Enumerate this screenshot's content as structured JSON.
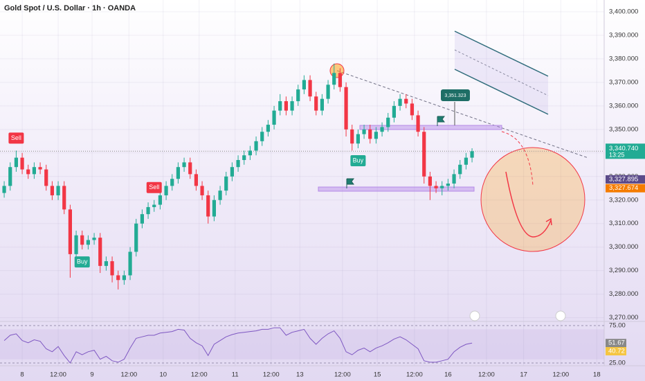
{
  "chart_data": {
    "type": "candlestick",
    "title": "Gold Spot / U.S. Dollar · 1h · OANDA",
    "up_color": "#22ab94",
    "down_color": "#f23645",
    "open": [
      3323,
      3326,
      3334,
      3338,
      3333,
      3331,
      3334,
      3333,
      3326,
      3322,
      3326,
      3316,
      3297,
      3305,
      3301,
      3303,
      3304,
      3292,
      3294,
      3288,
      3286,
      3288,
      3298,
      3310,
      3314,
      3317,
      3318,
      3322,
      3326,
      3329,
      3334,
      3336,
      3331,
      3326,
      3322,
      3313,
      3320,
      3324,
      3330,
      3334,
      3337,
      3339,
      3341,
      3345,
      3349,
      3352,
      3358,
      3362,
      3358,
      3362,
      3367,
      3371,
      3364,
      3358,
      3363,
      3369,
      3374,
      3368,
      3350,
      3344,
      3348,
      3350,
      3346,
      3349,
      3351,
      3355,
      3360,
      3363,
      3361,
      3356,
      3349,
      3330,
      3326,
      3325,
      3326,
      3327,
      3331,
      3335,
      3338
    ],
    "high": [
      3328,
      3336,
      3341,
      3340,
      3335,
      3336,
      3336,
      3335,
      3328,
      3328,
      3328,
      3318,
      3307,
      3307,
      3305,
      3306,
      3306,
      3296,
      3296,
      3290,
      3290,
      3300,
      3312,
      3316,
      3319,
      3320,
      3324,
      3328,
      3331,
      3336,
      3338,
      3338,
      3333,
      3328,
      3324,
      3322,
      3326,
      3332,
      3336,
      3339,
      3341,
      3343,
      3347,
      3351,
      3354,
      3360,
      3365,
      3364,
      3364,
      3369,
      3373,
      3373,
      3366,
      3365,
      3371,
      3378,
      3376,
      3370,
      3352,
      3350,
      3352,
      3352,
      3351,
      3353,
      3357,
      3362,
      3365,
      3365,
      3363,
      3358,
      3351,
      3332,
      3328,
      3328,
      3329,
      3333,
      3337,
      3340,
      3342
    ],
    "low": [
      3321,
      3324,
      3332,
      3331,
      3329,
      3329,
      3331,
      3324,
      3320,
      3320,
      3314,
      3287,
      3295,
      3299,
      3299,
      3301,
      3289,
      3290,
      3285,
      3282,
      3284,
      3286,
      3296,
      3308,
      3312,
      3315,
      3316,
      3320,
      3324,
      3327,
      3332,
      3329,
      3324,
      3320,
      3310,
      3311,
      3318,
      3322,
      3328,
      3332,
      3335,
      3337,
      3339,
      3343,
      3347,
      3350,
      3356,
      3356,
      3356,
      3360,
      3365,
      3362,
      3356,
      3356,
      3361,
      3367,
      3366,
      3347,
      3341,
      3342,
      3346,
      3344,
      3344,
      3347,
      3349,
      3353,
      3358,
      3359,
      3354,
      3347,
      3327,
      3320,
      3323,
      3322,
      3324,
      3325,
      3329,
      3333,
      3336
    ],
    "close": [
      3326,
      3334,
      3338,
      3333,
      3331,
      3334,
      3333,
      3326,
      3322,
      3326,
      3316,
      3297,
      3305,
      3301,
      3303,
      3304,
      3292,
      3294,
      3288,
      3286,
      3288,
      3298,
      3310,
      3314,
      3317,
      3318,
      3322,
      3326,
      3329,
      3334,
      3336,
      3331,
      3326,
      3322,
      3313,
      3320,
      3324,
      3330,
      3334,
      3337,
      3339,
      3341,
      3345,
      3349,
      3352,
      3358,
      3362,
      3358,
      3362,
      3367,
      3371,
      3364,
      3358,
      3363,
      3369,
      3374,
      3368,
      3350,
      3344,
      3348,
      3350,
      3346,
      3349,
      3351,
      3355,
      3360,
      3363,
      3361,
      3356,
      3349,
      3330,
      3326,
      3325,
      3326,
      3327,
      3331,
      3335,
      3338,
      3340.74
    ],
    "xlim": [
      -0.7,
      100.03
    ],
    "xticks": [
      {
        "value": 3,
        "label": "8"
      },
      {
        "value": 9,
        "label": "12:00"
      },
      {
        "value": 14.65,
        "label": "9"
      },
      {
        "value": 20.8,
        "label": "12:00"
      },
      {
        "value": 26.5,
        "label": "10"
      },
      {
        "value": 32.5,
        "label": "12:00"
      },
      {
        "value": 38.5,
        "label": "11"
      },
      {
        "value": 44.5,
        "label": "12:00"
      },
      {
        "value": 49.3,
        "label": "13"
      },
      {
        "value": 56.4,
        "label": "12:00"
      },
      {
        "value": 62.2,
        "label": "15"
      },
      {
        "value": 68.4,
        "label": "12:00"
      },
      {
        "value": 74,
        "label": "16"
      },
      {
        "value": 80.4,
        "label": "12:00"
      },
      {
        "value": 86.6,
        "label": "17"
      },
      {
        "value": 92.8,
        "label": "12:00"
      },
      {
        "value": 98.8,
        "label": "18"
      }
    ],
    "ylim": [
      3269,
      3405
    ],
    "yticks": [
      {
        "value": 3270,
        "label": "3,270.000"
      },
      {
        "value": 3280,
        "label": "3,280.000"
      },
      {
        "value": 3290,
        "label": "3,290.000"
      },
      {
        "value": 3300,
        "label": "3,300.000"
      },
      {
        "value": 3310,
        "label": "3,310.000"
      },
      {
        "value": 3320,
        "label": "3,320.000"
      },
      {
        "value": 3330,
        "label": "3,330.000"
      },
      {
        "value": 3340,
        "label": "3,340.000"
      },
      {
        "value": 3350,
        "label": "3,350.000"
      },
      {
        "value": 3360,
        "label": "3,360.000"
      },
      {
        "value": 3370,
        "label": "3,370.000"
      },
      {
        "value": 3380,
        "label": "3,380.000"
      },
      {
        "value": 3390,
        "label": "3,390.000"
      },
      {
        "value": 3400,
        "label": "3,400.000"
      }
    ],
    "last_price": {
      "value": 3340.74,
      "label": "3,340.740",
      "countdown": "13:25"
    },
    "levels": [
      {
        "value": 3327.895,
        "label": "3,327.895",
        "color": "#5b4a8a"
      },
      {
        "value": 3327.674,
        "label": "3,327.674",
        "color": "#f57c00"
      }
    ],
    "annotation": {
      "value": 3351.323,
      "label": "3,351.323"
    },
    "signals": [
      {
        "label": "Sell",
        "index": 2,
        "color": "#f23645"
      },
      {
        "label": "Buy",
        "index": 13,
        "color": "#22ab94"
      },
      {
        "label": "Sell",
        "index": 25,
        "color": "#f23645"
      },
      {
        "label": "Buy",
        "index": 59,
        "color": "#22ab94"
      }
    ],
    "rsi": {
      "color": "#7e57c2",
      "ylim": [
        25,
        75
      ],
      "yticks": [
        {
          "value": 75,
          "label": "75.00"
        },
        {
          "value": 25,
          "label": "25.00"
        }
      ],
      "values": [
        55,
        62,
        64,
        55,
        52,
        56,
        54,
        44,
        40,
        47,
        35,
        25,
        40,
        36,
        40,
        42,
        30,
        34,
        28,
        26,
        30,
        45,
        58,
        60,
        62,
        62,
        65,
        66,
        67,
        70,
        69,
        58,
        52,
        48,
        35,
        50,
        55,
        60,
        63,
        65,
        66,
        67,
        68,
        70,
        70,
        72,
        72,
        62,
        66,
        68,
        70,
        58,
        50,
        58,
        64,
        68,
        58,
        40,
        36,
        42,
        45,
        40,
        45,
        48,
        52,
        57,
        60,
        56,
        50,
        44,
        28,
        26,
        26,
        28,
        30,
        40,
        46,
        50,
        51.67
      ],
      "last": 51.67,
      "ma_last": 40.72,
      "ma_color": "#f5c542"
    }
  }
}
